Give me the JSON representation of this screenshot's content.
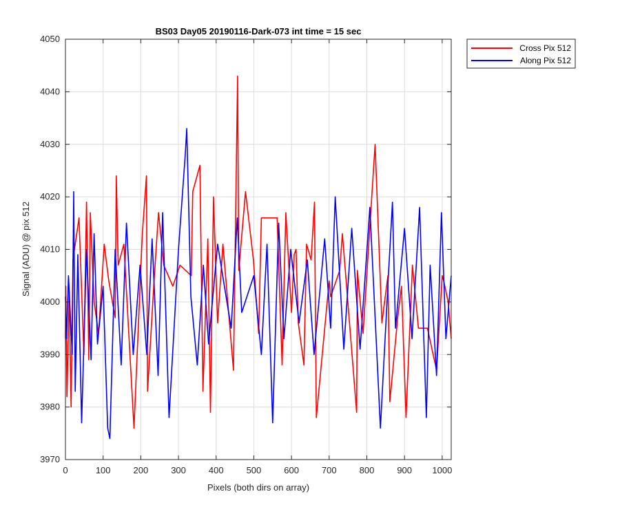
{
  "chart_data": {
    "type": "line",
    "title": "BS03 Day05 20190116-Dark-073 int time = 15 sec",
    "xlabel": "Pixels (both dirs on array)",
    "ylabel": "Signal (ADU) @ pix 512",
    "xlim": [
      0,
      1024
    ],
    "ylim": [
      3970,
      4050
    ],
    "xticks": [
      0,
      100,
      200,
      300,
      400,
      500,
      600,
      700,
      800,
      900,
      1000
    ],
    "yticks": [
      3970,
      3980,
      3990,
      4000,
      4010,
      4020,
      4030,
      4040,
      4050
    ],
    "grid": true,
    "legend_position": "outside-top-right",
    "series": [
      {
        "name": "Cross Pix 512",
        "color": "#ff0000",
        "x": [
          0,
          1,
          4,
          10,
          15,
          20,
          36,
          49,
          56,
          62,
          66,
          76,
          88,
          103,
          115,
          132,
          135,
          140,
          155,
          182,
          204,
          215,
          218,
          236,
          247,
          261,
          285,
          304,
          334,
          338,
          357,
          365,
          378,
          385,
          393,
          404,
          418,
          446,
          457,
          460,
          478,
          499,
          513,
          520,
          562,
          575,
          585,
          600,
          607,
          612,
          618,
          633,
          640,
          652,
          661,
          666,
          700,
          704,
          728,
          735,
          773,
          775,
          790,
          822,
          840,
          856,
          861,
          882,
          892,
          904,
          921,
          937,
          961,
          985,
          1000,
          1004,
          1016,
          1024
        ],
        "values": [
          3993,
          4003,
          3982,
          4002,
          3980,
          4008,
          4016,
          3990,
          4019,
          3989,
          4017,
          4000,
          3994,
          4011,
          4004,
          3997,
          4024,
          4007,
          4011,
          3976,
          4013,
          4024,
          3983,
          4005,
          4017,
          4007,
          4003,
          4007,
          4005,
          4021,
          4026,
          3983,
          4012,
          3979,
          4020,
          3996,
          4011,
          3987,
          4043,
          4006,
          4021,
          4008,
          3994,
          4016,
          4016,
          3988,
          4017,
          3998,
          4009,
          4010,
          3996,
          3988,
          4011,
          4008,
          4019,
          3978,
          4004,
          4001,
          4006,
          4013,
          3979,
          4006,
          3994,
          4030,
          3996,
          4005,
          3981,
          3997,
          4003,
          3978,
          4007,
          3995,
          3995,
          3987,
          4005,
          4004,
          4000,
          3993
        ]
      },
      {
        "name": "Along Pix 512",
        "color": "#0000ff",
        "x": [
          0,
          3,
          8,
          18,
          22,
          26,
          33,
          43,
          56,
          68,
          76,
          85,
          100,
          112,
          118,
          132,
          148,
          162,
          180,
          198,
          216,
          230,
          246,
          258,
          275,
          300,
          318,
          322,
          333,
          350,
          366,
          380,
          404,
          440,
          456,
          468,
          500,
          520,
          535,
          550,
          566,
          580,
          598,
          620,
          642,
          660,
          688,
          704,
          716,
          739,
          760,
          782,
          808,
          836,
          858,
          868,
          876,
          900,
          920,
          940,
          958,
          968,
          985,
          998,
          1010,
          1024
        ],
        "values": [
          4001,
          3993,
          4005,
          3990,
          4021,
          3983,
          4009,
          3977,
          4010,
          3989,
          4013,
          3992,
          4003,
          3976,
          3974,
          4010,
          3988,
          4015,
          3990,
          4007,
          3990,
          4012,
          3986,
          4017,
          3978,
          4010,
          4028,
          4033,
          4001,
          3988,
          4007,
          3992,
          4011,
          3995,
          4016,
          3998,
          4005,
          3990,
          4011,
          3977,
          4015,
          3993,
          4010,
          3996,
          4008,
          3990,
          4012,
          3995,
          4020,
          3991,
          4014,
          3991,
          4018,
          3976,
          4006,
          4019,
          3995,
          4014,
          3993,
          4018,
          3978,
          4007,
          3986,
          4017,
          3993,
          4005
        ]
      }
    ]
  }
}
